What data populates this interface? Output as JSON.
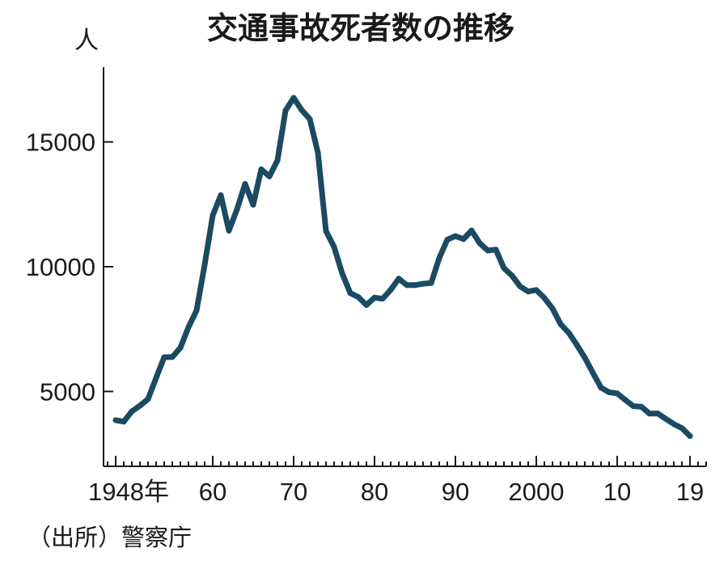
{
  "chart_data": {
    "type": "line",
    "title": "交通事故死者数の推移",
    "ylabel": "人",
    "xlabel": "",
    "source": "（出所）警察庁",
    "ylim": [
      2000,
      18000
    ],
    "xlim": [
      1946.5,
      2021
    ],
    "yticks": [
      {
        "value": 5000,
        "label": "5000"
      },
      {
        "value": 10000,
        "label": "10000"
      },
      {
        "value": 15000,
        "label": "15000"
      }
    ],
    "xticks": [
      {
        "value": 1948,
        "label": "1948年"
      },
      {
        "value": 1960,
        "label": "60"
      },
      {
        "value": 1970,
        "label": "70"
      },
      {
        "value": 1980,
        "label": "80"
      },
      {
        "value": 1990,
        "label": "90"
      },
      {
        "value": 2000,
        "label": "2000"
      },
      {
        "value": 2010,
        "label": "10"
      },
      {
        "value": 2019,
        "label": "19"
      }
    ],
    "minor_ticks_every": 1,
    "color": "#1b4a63",
    "series": [
      {
        "name": "交通事故死者数",
        "x": [
          1948,
          1949,
          1950,
          1951,
          1952,
          1953,
          1954,
          1955,
          1956,
          1957,
          1958,
          1959,
          1960,
          1961,
          1962,
          1963,
          1964,
          1965,
          1966,
          1967,
          1968,
          1969,
          1970,
          1971,
          1972,
          1973,
          1974,
          1975,
          1976,
          1977,
          1978,
          1979,
          1980,
          1981,
          1982,
          1983,
          1984,
          1985,
          1986,
          1987,
          1988,
          1989,
          1990,
          1991,
          1992,
          1993,
          1994,
          1995,
          1996,
          1997,
          1998,
          1999,
          2000,
          2001,
          2002,
          2003,
          2004,
          2005,
          2006,
          2007,
          2008,
          2009,
          2010,
          2011,
          2012,
          2013,
          2014,
          2015,
          2016,
          2017,
          2018,
          2019
        ],
        "values": [
          3848,
          3790,
          4202,
          4429,
          4696,
          5544,
          6374,
          6379,
          6751,
          7575,
          8248,
          10079,
          12055,
          12865,
          11445,
          12301,
          13318,
          12484,
          13904,
          13618,
          14256,
          16257,
          16765,
          16278,
          15918,
          14574,
          11432,
          10792,
          9734,
          8945,
          8783,
          8466,
          8760,
          8719,
          9073,
          9520,
          9262,
          9261,
          9317,
          9347,
          10344,
          11086,
          11227,
          11109,
          11451,
          10942,
          10649,
          10684,
          9942,
          9640,
          9211,
          9006,
          9066,
          8747,
          8326,
          7702,
          7358,
          6871,
          6352,
          5744,
          5155,
          4968,
          4922,
          4663,
          4411,
          4388,
          4113,
          4117,
          3904,
          3694,
          3532,
          3215
        ]
      }
    ]
  }
}
